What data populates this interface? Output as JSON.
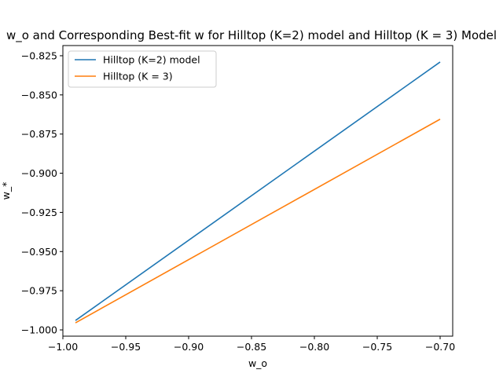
{
  "chart_data": {
    "type": "line",
    "title": "w_o and Corresponding Best-fit w for Hilltop (K=2) model and Hilltop (K = 3) Model",
    "xlabel": "w_o",
    "ylabel": "w_*",
    "xlim": [
      -1.0,
      -0.69
    ],
    "ylim": [
      -1.004,
      -0.8185
    ],
    "x_ticks": [
      -1.0,
      -0.95,
      -0.9,
      -0.85,
      -0.8,
      -0.75,
      -0.7
    ],
    "x_tick_labels": [
      "−1.00",
      "−0.95",
      "−0.90",
      "−0.85",
      "−0.80",
      "−0.75",
      "−0.70"
    ],
    "y_ticks": [
      -1.0,
      -0.975,
      -0.95,
      -0.925,
      -0.9,
      -0.875,
      -0.85,
      -0.825
    ],
    "y_tick_labels": [
      "−1.000",
      "−0.975",
      "−0.950",
      "−0.925",
      "−0.900",
      "−0.875",
      "−0.850",
      "−0.825"
    ],
    "grid": false,
    "legend_position": "upper-left",
    "series": [
      {
        "name": "Hilltop (K=2) model",
        "color": "#1f77b4",
        "x": [
          -0.99,
          -0.7
        ],
        "y": [
          -0.994,
          -0.829
        ]
      },
      {
        "name": "Hilltop (K = 3)",
        "color": "#ff7f0e",
        "x": [
          -0.99,
          -0.7
        ],
        "y": [
          -0.9955,
          -0.8655
        ]
      }
    ]
  }
}
